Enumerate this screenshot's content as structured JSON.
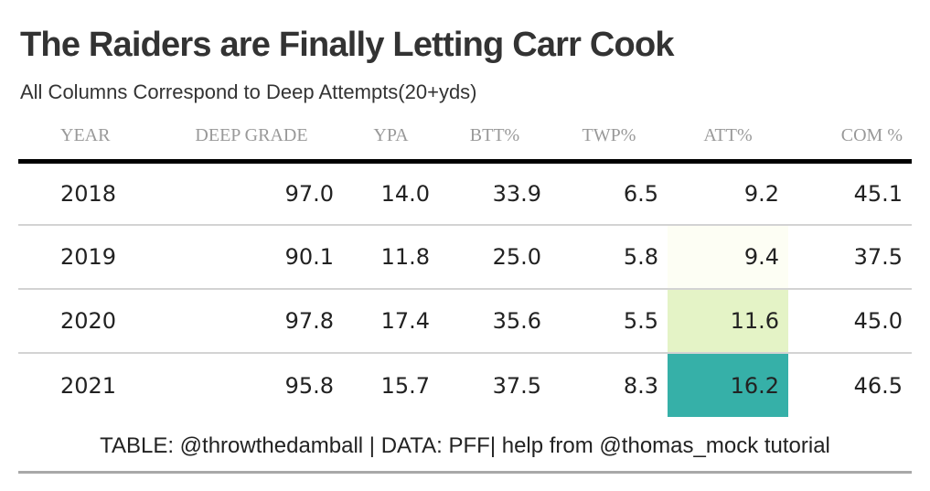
{
  "title": "The Raiders are Finally Letting Carr Cook",
  "subtitle": "All Columns Correspond to Deep Attempts(20+yds)",
  "source": "TABLE: @throwthedamball | DATA: PFF| help from @thomas_mock tutorial",
  "chart_data": {
    "type": "table",
    "columns": [
      "YEAR",
      "DEEP GRADE",
      "YPA",
      "BTT%",
      "TWP%",
      "ATT%",
      "COM %"
    ],
    "rows": [
      [
        "2018",
        "97.0",
        "14.0",
        "33.9",
        "6.5",
        "9.2",
        "45.1"
      ],
      [
        "2019",
        "90.1",
        "11.8",
        "25.0",
        "5.8",
        "9.4",
        "37.5"
      ],
      [
        "2020",
        "97.8",
        "17.4",
        "35.6",
        "5.5",
        "11.6",
        "45.0"
      ],
      [
        "2021",
        "95.8",
        "15.7",
        "37.5",
        "8.3",
        "16.2",
        "46.5"
      ]
    ],
    "highlight_column": "ATT%",
    "highlight_colors": [
      "#ffffff",
      "#fdfef4",
      "#e4f3c6",
      "#36b0a8"
    ]
  }
}
